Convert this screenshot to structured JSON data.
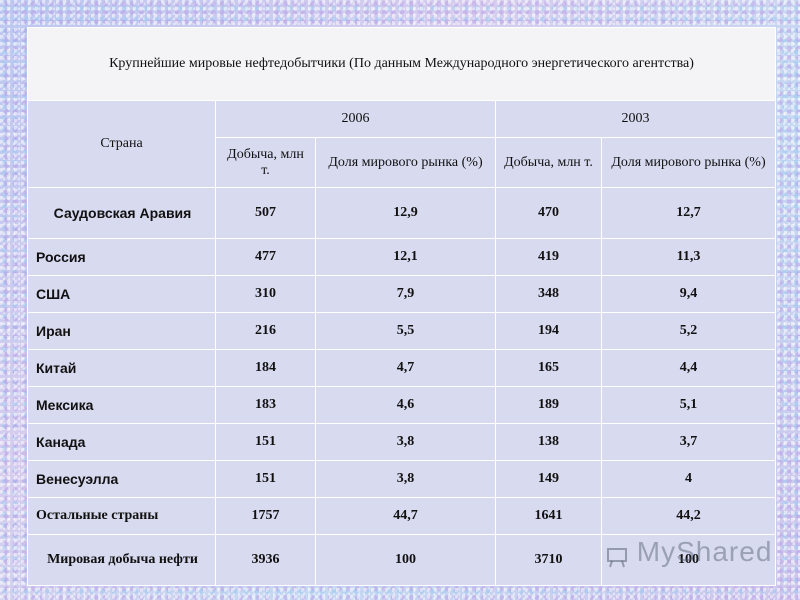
{
  "title": "Крупнейшие мировые нефтедобытчики (По данным Международного энергетического агентства)",
  "header": {
    "country": "Страна",
    "year_a": "2006",
    "year_b": "2003",
    "production": "Добыча, млн т.",
    "share": "Доля мирового рынка (%)"
  },
  "rows": [
    {
      "country": "Саудовская Аравия",
      "p2006": "507",
      "s2006": "12,9",
      "p2003": "470",
      "s2003": "12,7"
    },
    {
      "country": "Россия",
      "p2006": "477",
      "s2006": "12,1",
      "p2003": "419",
      "s2003": "11,3"
    },
    {
      "country": "США",
      "p2006": "310",
      "s2006": "7,9",
      "p2003": "348",
      "s2003": "9,4"
    },
    {
      "country": "Иран",
      "p2006": "216",
      "s2006": "5,5",
      "p2003": "194",
      "s2003": "5,2"
    },
    {
      "country": "Китай",
      "p2006": "184",
      "s2006": "4,7",
      "p2003": "165",
      "s2003": "4,4"
    },
    {
      "country": "Мексика",
      "p2006": "183",
      "s2006": "4,6",
      "p2003": "189",
      "s2003": "5,1"
    },
    {
      "country": "Канада",
      "p2006": "151",
      "s2006": "3,8",
      "p2003": "138",
      "s2003": "3,7"
    },
    {
      "country": "Венесуэлла",
      "p2006": "151",
      "s2006": "3,8",
      "p2003": "149",
      "s2003": "4"
    },
    {
      "country": "Остальные страны",
      "p2006": "1757",
      "s2006": "44,7",
      "p2003": "1641",
      "s2003": "44,2"
    },
    {
      "country": "Мировая добыча нефти",
      "p2006": "3936",
      "s2006": "100",
      "p2003": "3710",
      "s2003": "100"
    }
  ],
  "watermark": {
    "text": "MyShared",
    "icon": "presentation-board-icon"
  }
}
